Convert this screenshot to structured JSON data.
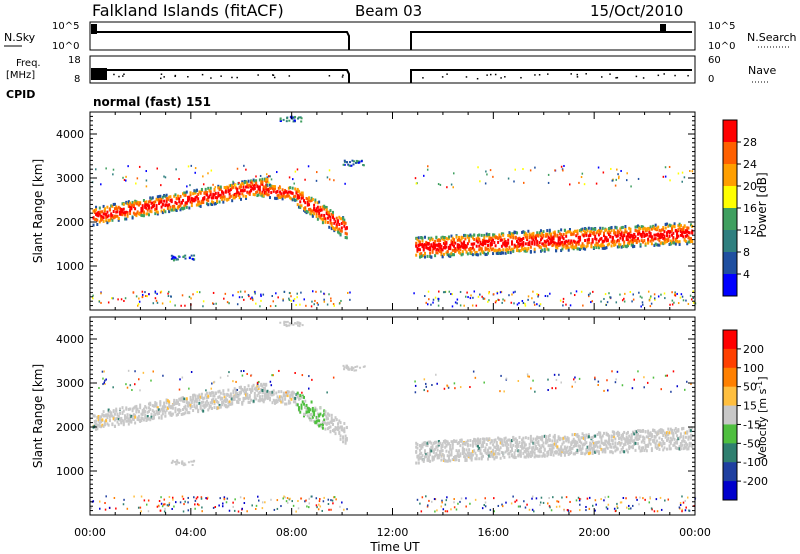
{
  "header": {
    "station": "Falkland Islands (fitACF)",
    "beam": "Beam 03",
    "date": "15/Oct/2010"
  },
  "panels": {
    "nsky": {
      "left_label": "N.Sky",
      "left_ticks": [
        "10^5",
        "10^0"
      ],
      "right_label": "N.Search",
      "right_ticks": [
        "10^5",
        "10^0"
      ]
    },
    "freq": {
      "left_label_top": "Freq.",
      "left_label_unit": "[MHz]",
      "left_ticks": [
        "18",
        "8"
      ],
      "right_label": "Nave",
      "right_ticks": [
        "60",
        "0"
      ]
    },
    "cpid": {
      "label": "CPID",
      "mode": "normal (fast) 151"
    }
  },
  "colors": {
    "power": [
      "#0000ff",
      "#1f4fa0",
      "#2f7f7f",
      "#3f9f5f",
      "#ffff00",
      "#ff9f00",
      "#ff6000",
      "#ff0000"
    ],
    "velocity": [
      "#0000cc",
      "#1f3fa0",
      "#2f7f6f",
      "#4fbf3f",
      "#c8c8c8",
      "#ffbf3f",
      "#ff8000",
      "#ff4000",
      "#ff0000"
    ],
    "gray": "#c8c8c8"
  },
  "chart_data": [
    {
      "type": "heatmap",
      "name": "power",
      "ylabel": "Slant Range [km]",
      "ylim": [
        0,
        4500
      ],
      "y_ticks": [
        "1000",
        "2000",
        "3000",
        "4000"
      ],
      "x_ticks": [
        "00:00",
        "04:00",
        "08:00",
        "12:00",
        "16:00",
        "20:00",
        "00:00"
      ],
      "xlim": [
        0,
        24
      ],
      "colorbar": {
        "label": "Power [dB]",
        "ticks": [
          "4",
          "8",
          "12",
          "16",
          "20",
          "24",
          "28"
        ]
      }
    },
    {
      "type": "heatmap",
      "name": "velocity",
      "ylabel": "Slant Range [km]",
      "ylim": [
        0,
        4500
      ],
      "y_ticks": [
        "1000",
        "2000",
        "3000",
        "4000"
      ],
      "x_ticks": [
        "00:00",
        "04:00",
        "08:00",
        "12:00",
        "16:00",
        "20:00",
        "00:00"
      ],
      "xlim": [
        0,
        24
      ],
      "xlabel": "Time UT",
      "colorbar": {
        "label_main": "Velocity [m s",
        "label_sup": "-1",
        "label_end": "]",
        "ticks": [
          "200",
          "100",
          "50",
          "15",
          "-15",
          "-50",
          "-100",
          "-200"
        ]
      }
    }
  ]
}
